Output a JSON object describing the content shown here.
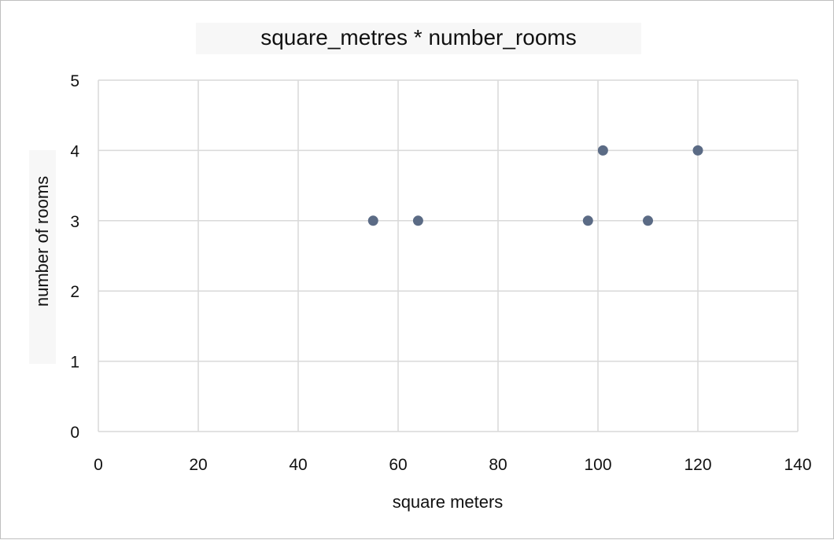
{
  "chart_data": {
    "type": "scatter",
    "title": "square_metres * number_rooms",
    "xlabel": "square meters",
    "ylabel": "number of rooms",
    "xlim": [
      0,
      140
    ],
    "ylim": [
      0,
      5
    ],
    "x_ticks": [
      0,
      20,
      40,
      60,
      80,
      100,
      120,
      140
    ],
    "y_ticks": [
      0,
      1,
      2,
      3,
      4,
      5
    ],
    "grid": true,
    "legend": "none",
    "marker_color": "#5b6b85",
    "series": [
      {
        "points": [
          {
            "x": 55,
            "y": 3
          },
          {
            "x": 64,
            "y": 3
          },
          {
            "x": 98,
            "y": 3
          },
          {
            "x": 101,
            "y": 4
          },
          {
            "x": 110,
            "y": 3
          },
          {
            "x": 120,
            "y": 4
          }
        ]
      }
    ]
  }
}
